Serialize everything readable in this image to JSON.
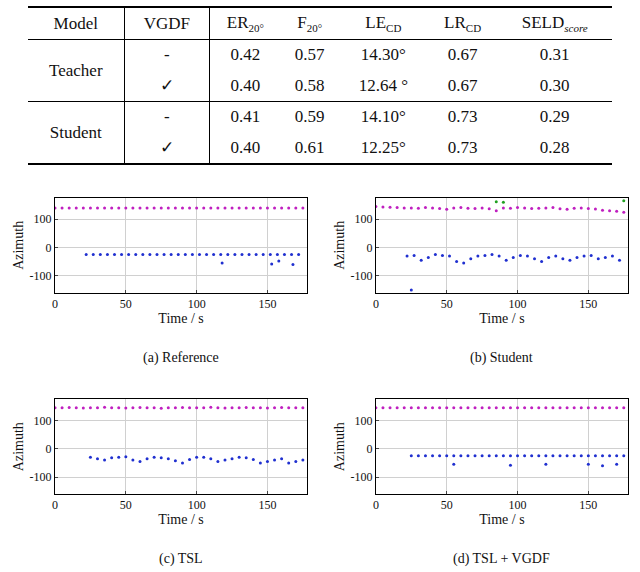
{
  "table": {
    "header": [
      {
        "text": "Model"
      },
      {
        "text": "VGDF"
      },
      {
        "text": "ER",
        "sub": "20°"
      },
      {
        "text": "F",
        "sub": "20°"
      },
      {
        "text": "LE",
        "sub": "CD"
      },
      {
        "text": "LR",
        "sub": "CD"
      },
      {
        "text": "SELD",
        "sub": "score"
      }
    ],
    "groups": [
      {
        "model": "Teacher",
        "rows": [
          [
            "-",
            "0.42",
            "0.57",
            "14.30°",
            "0.67",
            "0.31"
          ],
          [
            "✓",
            "0.40",
            "0.58",
            "12.64 °",
            "0.67",
            "0.30"
          ]
        ]
      },
      {
        "model": "Student",
        "rows": [
          [
            "-",
            "0.41",
            "0.59",
            "14.10°",
            "0.73",
            "0.29"
          ],
          [
            "✓",
            "0.40",
            "0.61",
            "12.25°",
            "0.73",
            "0.28"
          ]
        ]
      }
    ]
  },
  "chart_data": [
    {
      "type": "scatter",
      "title": "(a) Reference",
      "x_label": "Time / s",
      "y_label": "Azimuth",
      "xlim": [
        0,
        178
      ],
      "xticks": [
        0,
        50,
        100,
        150
      ],
      "ylim": [
        -160,
        175
      ],
      "yticks": [
        -100,
        0,
        100
      ],
      "grid": true,
      "marker": "circle",
      "series": [
        {
          "color": "#c020c0",
          "x": [
            0,
            5,
            10,
            15,
            20,
            25,
            30,
            35,
            40,
            45,
            50,
            55,
            60,
            65,
            70,
            75,
            80,
            85,
            90,
            95,
            100,
            105,
            110,
            115,
            120,
            125,
            130,
            135,
            140,
            145,
            150,
            155,
            160,
            165,
            170,
            175
          ],
          "values": [
            140,
            140,
            140,
            140,
            140,
            140,
            140,
            140,
            140,
            140,
            140,
            140,
            140,
            140,
            140,
            140,
            140,
            140,
            140,
            140,
            140,
            140,
            140,
            140,
            140,
            140,
            140,
            140,
            140,
            140,
            140,
            140,
            140,
            140,
            140,
            140
          ]
        },
        {
          "color": "#2030d0",
          "x": [
            22,
            27,
            32,
            37,
            42,
            47,
            52,
            57,
            62,
            67,
            72,
            77,
            82,
            87,
            92,
            97,
            102,
            107,
            112,
            117,
            122,
            127,
            132,
            137,
            142,
            147,
            152,
            157,
            162,
            167,
            172,
            118,
            153,
            158,
            168
          ],
          "values": [
            -25,
            -25,
            -25,
            -25,
            -25,
            -25,
            -25,
            -25,
            -25,
            -25,
            -25,
            -25,
            -25,
            -25,
            -25,
            -25,
            -25,
            -25,
            -25,
            -25,
            -25,
            -25,
            -25,
            -25,
            -25,
            -25,
            -25,
            -25,
            -25,
            -25,
            -25,
            -55,
            -58,
            -48,
            -60
          ]
        }
      ]
    },
    {
      "type": "scatter",
      "title": "(b) Student",
      "x_label": "Time / s",
      "y_label": "Azimuth",
      "xlim": [
        0,
        178
      ],
      "xticks": [
        0,
        50,
        100,
        150
      ],
      "ylim": [
        -160,
        175
      ],
      "yticks": [
        -100,
        0,
        100
      ],
      "grid": true,
      "marker": "circle",
      "series": [
        {
          "color": "#c020c0",
          "x": [
            0,
            5,
            10,
            15,
            20,
            25,
            30,
            35,
            40,
            45,
            50,
            55,
            60,
            65,
            70,
            75,
            80,
            85,
            90,
            95,
            100,
            105,
            110,
            115,
            120,
            125,
            130,
            135,
            140,
            145,
            150,
            155,
            160,
            165,
            170,
            175
          ],
          "values": [
            145,
            143,
            142,
            141,
            140,
            140,
            139,
            141,
            140,
            138,
            135,
            140,
            141,
            139,
            138,
            140,
            137,
            130,
            140,
            139,
            141,
            140,
            138,
            139,
            140,
            141,
            137,
            135,
            139,
            140,
            138,
            136,
            132,
            130,
            128,
            125
          ]
        },
        {
          "color": "#2030d0",
          "x": [
            22,
            27,
            32,
            37,
            42,
            47,
            52,
            57,
            62,
            67,
            72,
            77,
            82,
            87,
            92,
            97,
            102,
            107,
            112,
            117,
            122,
            127,
            132,
            137,
            142,
            147,
            152,
            157,
            162,
            167,
            172,
            25
          ],
          "values": [
            -30,
            -28,
            -45,
            -35,
            -25,
            -28,
            -30,
            -50,
            -55,
            -40,
            -30,
            -28,
            -25,
            -30,
            -45,
            -35,
            -28,
            -30,
            -40,
            -50,
            -35,
            -30,
            -40,
            -45,
            -35,
            -30,
            -28,
            -40,
            -35,
            -30,
            -45,
            -150
          ]
        },
        {
          "color": "#20a020",
          "x": [
            85,
            90,
            175
          ],
          "values": [
            162,
            160,
            165
          ]
        }
      ]
    },
    {
      "type": "scatter",
      "title": "(c) TSL",
      "x_label": "Time / s",
      "y_label": "Azimuth",
      "xlim": [
        0,
        178
      ],
      "xticks": [
        0,
        50,
        100,
        150
      ],
      "ylim": [
        -160,
        175
      ],
      "yticks": [
        -100,
        0,
        100
      ],
      "grid": true,
      "marker": "circle",
      "series": [
        {
          "color": "#c020c0",
          "x": [
            0,
            5,
            10,
            15,
            20,
            25,
            30,
            35,
            40,
            45,
            50,
            55,
            60,
            65,
            70,
            75,
            80,
            85,
            90,
            95,
            100,
            105,
            110,
            115,
            120,
            125,
            130,
            135,
            140,
            145,
            150,
            155,
            160,
            165,
            170,
            175
          ],
          "values": [
            145,
            145,
            146,
            145,
            144,
            145,
            145,
            147,
            145,
            145,
            144,
            145,
            146,
            145,
            145,
            143,
            145,
            145,
            146,
            145,
            145,
            145,
            147,
            145,
            144,
            145,
            145,
            146,
            145,
            145,
            144,
            145,
            146,
            145,
            145,
            145
          ]
        },
        {
          "color": "#2030d0",
          "x": [
            25,
            30,
            35,
            40,
            45,
            50,
            55,
            60,
            65,
            70,
            75,
            80,
            85,
            90,
            95,
            100,
            105,
            110,
            115,
            120,
            125,
            130,
            135,
            140,
            145,
            150,
            155,
            160,
            165,
            170,
            175
          ],
          "values": [
            -30,
            -35,
            -40,
            -32,
            -30,
            -28,
            -40,
            -45,
            -35,
            -30,
            -32,
            -35,
            -42,
            -50,
            -38,
            -30,
            -30,
            -35,
            -45,
            -40,
            -35,
            -30,
            -32,
            -38,
            -50,
            -45,
            -40,
            -35,
            -50,
            -45,
            -40
          ]
        }
      ]
    },
    {
      "type": "scatter",
      "title": "(d) TSL + VGDF",
      "x_label": "Time / s",
      "y_label": "Azimuth",
      "xlim": [
        0,
        178
      ],
      "xticks": [
        0,
        50,
        100,
        150
      ],
      "ylim": [
        -160,
        175
      ],
      "yticks": [
        -100,
        0,
        100
      ],
      "grid": true,
      "marker": "circle",
      "series": [
        {
          "color": "#c020c0",
          "x": [
            0,
            5,
            10,
            15,
            20,
            25,
            30,
            35,
            40,
            45,
            50,
            55,
            60,
            65,
            70,
            75,
            80,
            85,
            90,
            95,
            100,
            105,
            110,
            115,
            120,
            125,
            130,
            135,
            140,
            145,
            150,
            155,
            160,
            165,
            170,
            175
          ],
          "values": [
            145,
            145,
            145,
            145,
            145,
            145,
            145,
            145,
            145,
            145,
            145,
            145,
            145,
            145,
            145,
            145,
            145,
            145,
            145,
            145,
            145,
            145,
            145,
            145,
            145,
            145,
            145,
            145,
            145,
            145,
            145,
            145,
            145,
            145,
            145,
            145
          ]
        },
        {
          "color": "#2030d0",
          "x": [
            25,
            30,
            35,
            40,
            45,
            50,
            55,
            60,
            65,
            70,
            75,
            80,
            85,
            90,
            95,
            100,
            105,
            110,
            115,
            120,
            125,
            130,
            135,
            140,
            145,
            150,
            155,
            160,
            165,
            170,
            175,
            55,
            95,
            120,
            150,
            160,
            170
          ],
          "values": [
            -25,
            -25,
            -25,
            -25,
            -25,
            -25,
            -25,
            -25,
            -25,
            -25,
            -25,
            -25,
            -25,
            -25,
            -25,
            -25,
            -25,
            -25,
            -25,
            -25,
            -25,
            -25,
            -25,
            -25,
            -25,
            -25,
            -25,
            -25,
            -25,
            -25,
            -25,
            -55,
            -58,
            -55,
            -55,
            -60,
            -55
          ]
        }
      ]
    }
  ]
}
